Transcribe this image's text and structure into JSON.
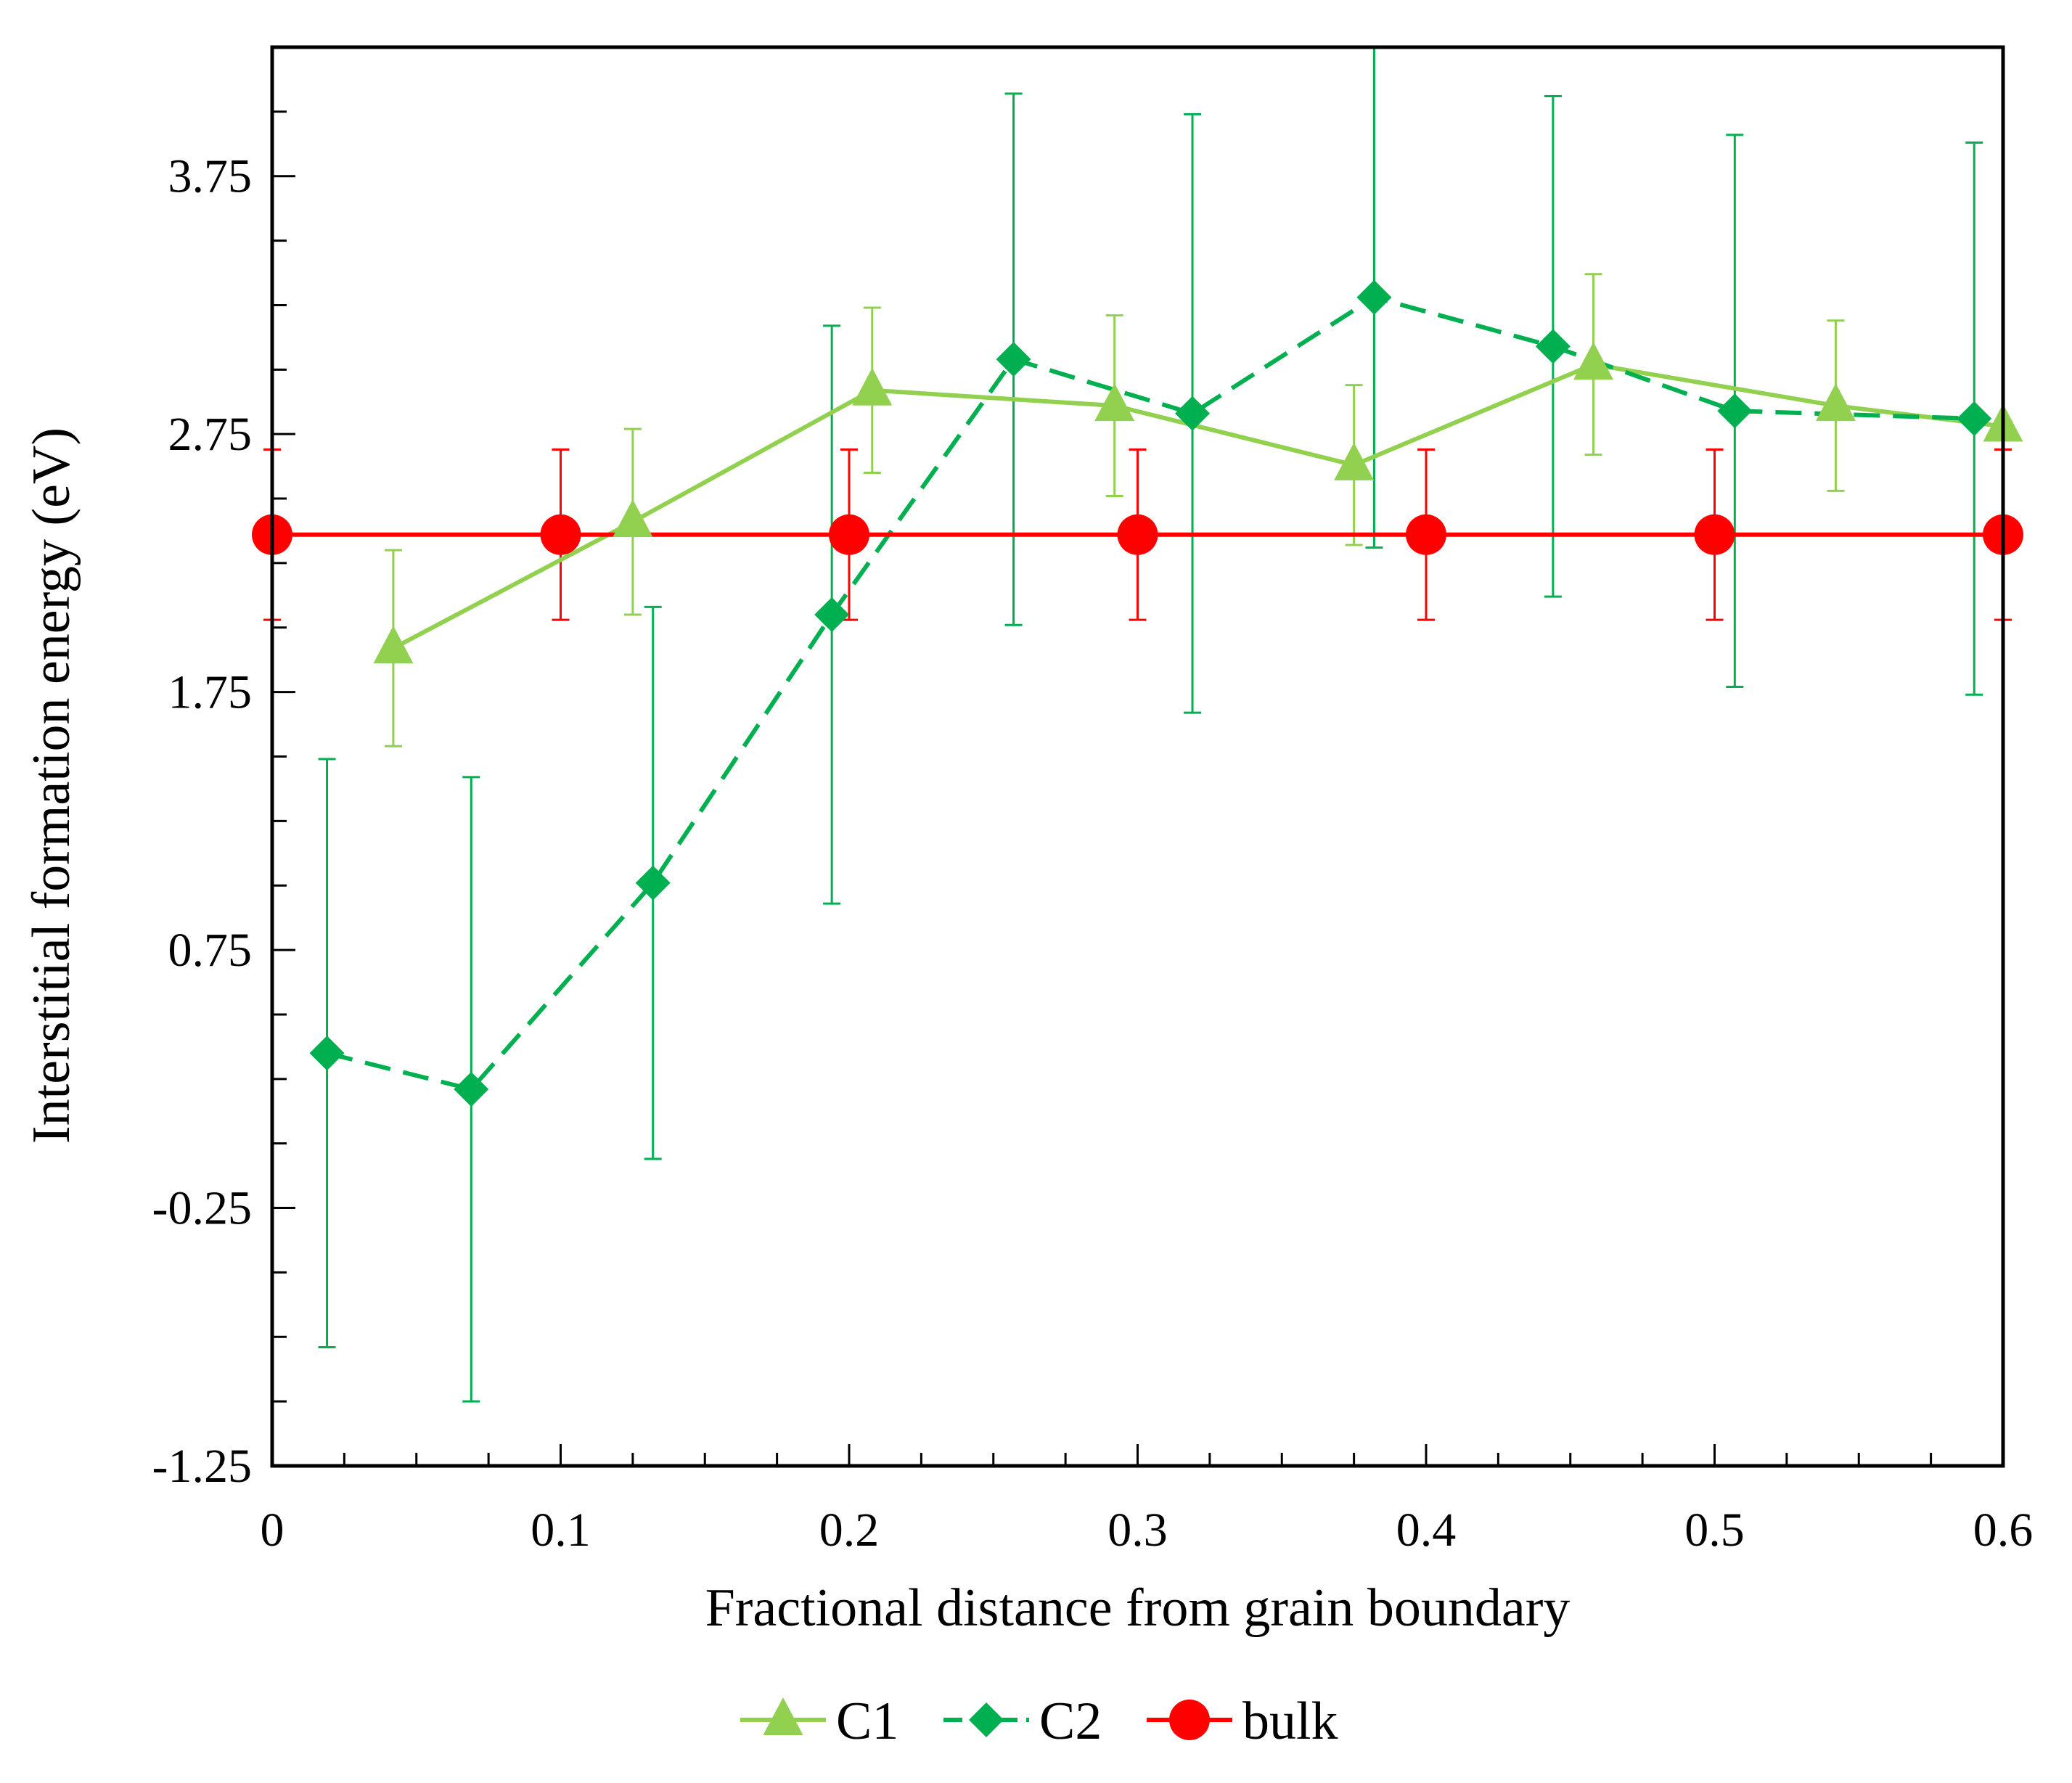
{
  "chart_data": {
    "type": "line",
    "title": "",
    "xlabel": "Fractional distance from grain boundary",
    "ylabel": "Interstitial formation energy (eV)",
    "xlim": [
      0,
      0.6
    ],
    "ylim": [
      -1.25,
      4.25
    ],
    "x_ticks": [
      "0",
      "0.1",
      "0.2",
      "0.3",
      "0.4",
      "0.5",
      "0.6"
    ],
    "x_tick_values": [
      0,
      0.1,
      0.2,
      0.3,
      0.4,
      0.5,
      0.6
    ],
    "y_ticks": [
      "-1.25",
      "-0.25",
      "0.75",
      "1.75",
      "2.75",
      "3.75"
    ],
    "y_tick_values": [
      -1.25,
      -0.25,
      0.75,
      1.75,
      2.75,
      3.75
    ],
    "grid": false,
    "legend_position": "bottom-center",
    "series": [
      {
        "name": "C1",
        "color": "#92D050",
        "marker": "triangle",
        "line_style": "solid",
        "x": [
          0.042,
          0.125,
          0.208,
          0.292,
          0.375,
          0.458,
          0.542,
          0.6
        ],
        "y": [
          1.92,
          2.41,
          2.92,
          2.86,
          2.63,
          3.02,
          2.86,
          2.78
        ],
        "error": [
          0.38,
          0.36,
          0.32,
          0.35,
          0.31,
          0.35,
          0.33,
          0.0
        ]
      },
      {
        "name": "C2",
        "color": "#00B050",
        "marker": "diamond",
        "line_style": "dashed",
        "x": [
          0.019,
          0.069,
          0.132,
          0.194,
          0.257,
          0.319,
          0.382,
          0.444,
          0.507,
          0.59
        ],
        "y": [
          0.35,
          0.21,
          1.01,
          2.05,
          3.04,
          2.83,
          3.28,
          3.09,
          2.84,
          2.81
        ],
        "error": [
          1.14,
          1.21,
          1.07,
          1.12,
          1.03,
          1.16,
          0.97,
          0.97,
          1.07,
          1.07
        ]
      },
      {
        "name": "bulk",
        "color": "#FF0000",
        "marker": "circle",
        "line_style": "solid",
        "x": [
          0,
          0.1,
          0.2,
          0.3,
          0.4,
          0.5,
          0.6
        ],
        "y": [
          2.36,
          2.36,
          2.36,
          2.36,
          2.36,
          2.36,
          2.36
        ],
        "error": [
          0.33,
          0.33,
          0.33,
          0.33,
          0.33,
          0.33,
          0.33
        ]
      }
    ]
  }
}
